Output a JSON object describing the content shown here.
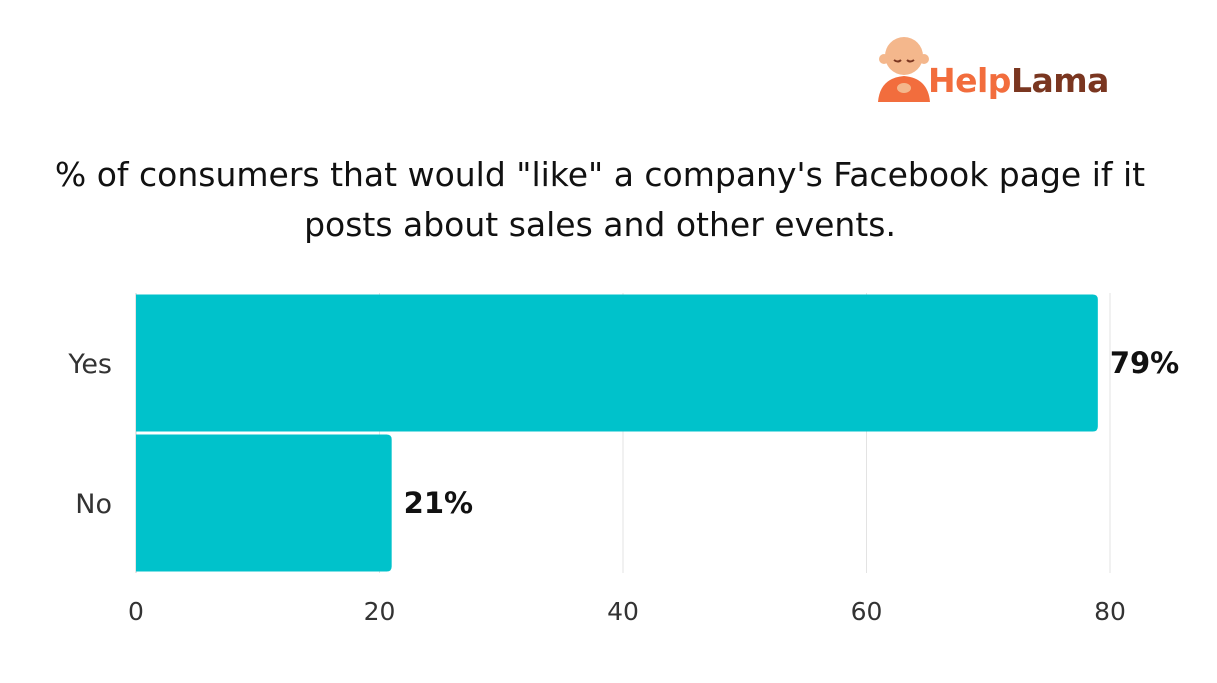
{
  "logo": {
    "text_part1": "Help",
    "text_part2": "Lama",
    "icon": "monk-icon",
    "colors": {
      "primary": "#f26d3d",
      "secondary": "#7a3620",
      "skin": "#f4b78c"
    }
  },
  "chart_data": {
    "type": "bar",
    "orientation": "horizontal",
    "title": "% of consumers that would \"like\" a company's Facebook page if it posts about sales and other events.",
    "categories": [
      "Yes",
      "No"
    ],
    "values": [
      79,
      21
    ],
    "value_labels": [
      "79%",
      "21%"
    ],
    "xlim": [
      0,
      80
    ],
    "xticks": [
      0,
      20,
      40,
      60,
      80
    ],
    "grid": true,
    "legend": "none",
    "bar_color": "#00c2cb"
  }
}
